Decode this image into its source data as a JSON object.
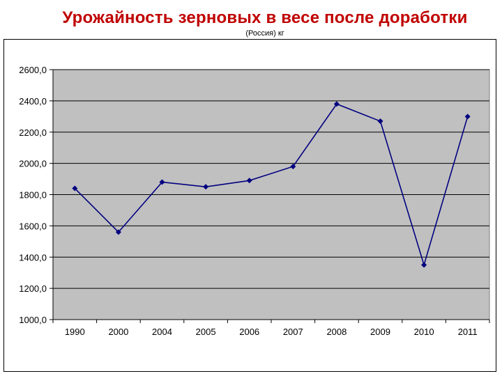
{
  "chart_data": {
    "type": "line",
    "title": "Урожайность зерновых в весе после доработки",
    "subtitle": "(Россия) кг",
    "xlabel": "",
    "ylabel": "",
    "categories": [
      "1990",
      "2000",
      "2004",
      "2005",
      "2006",
      "2007",
      "2008",
      "2009",
      "2010",
      "2011"
    ],
    "series": [
      {
        "values": [
          1840,
          1560,
          1880,
          1850,
          1890,
          1980,
          2380,
          2270,
          1350,
          2300
        ]
      }
    ],
    "ylim": [
      1000,
      2600
    ],
    "yticks": [
      {
        "value": 2600,
        "label": "2600,0"
      },
      {
        "value": 2400,
        "label": "2400,0"
      },
      {
        "value": 2200,
        "label": "2200,0"
      },
      {
        "value": 2000,
        "label": "2000,0"
      },
      {
        "value": 1800,
        "label": "1800,0"
      },
      {
        "value": 1600,
        "label": "1600,0"
      },
      {
        "value": 1400,
        "label": "1400,0"
      },
      {
        "value": 1200,
        "label": "1200,0"
      },
      {
        "value": 1000,
        "label": "1000,0"
      }
    ],
    "grid": true,
    "legend": "none",
    "colors": {
      "line": "#000080",
      "plot_background": "#c0c0c0",
      "title": "#c00000"
    }
  }
}
